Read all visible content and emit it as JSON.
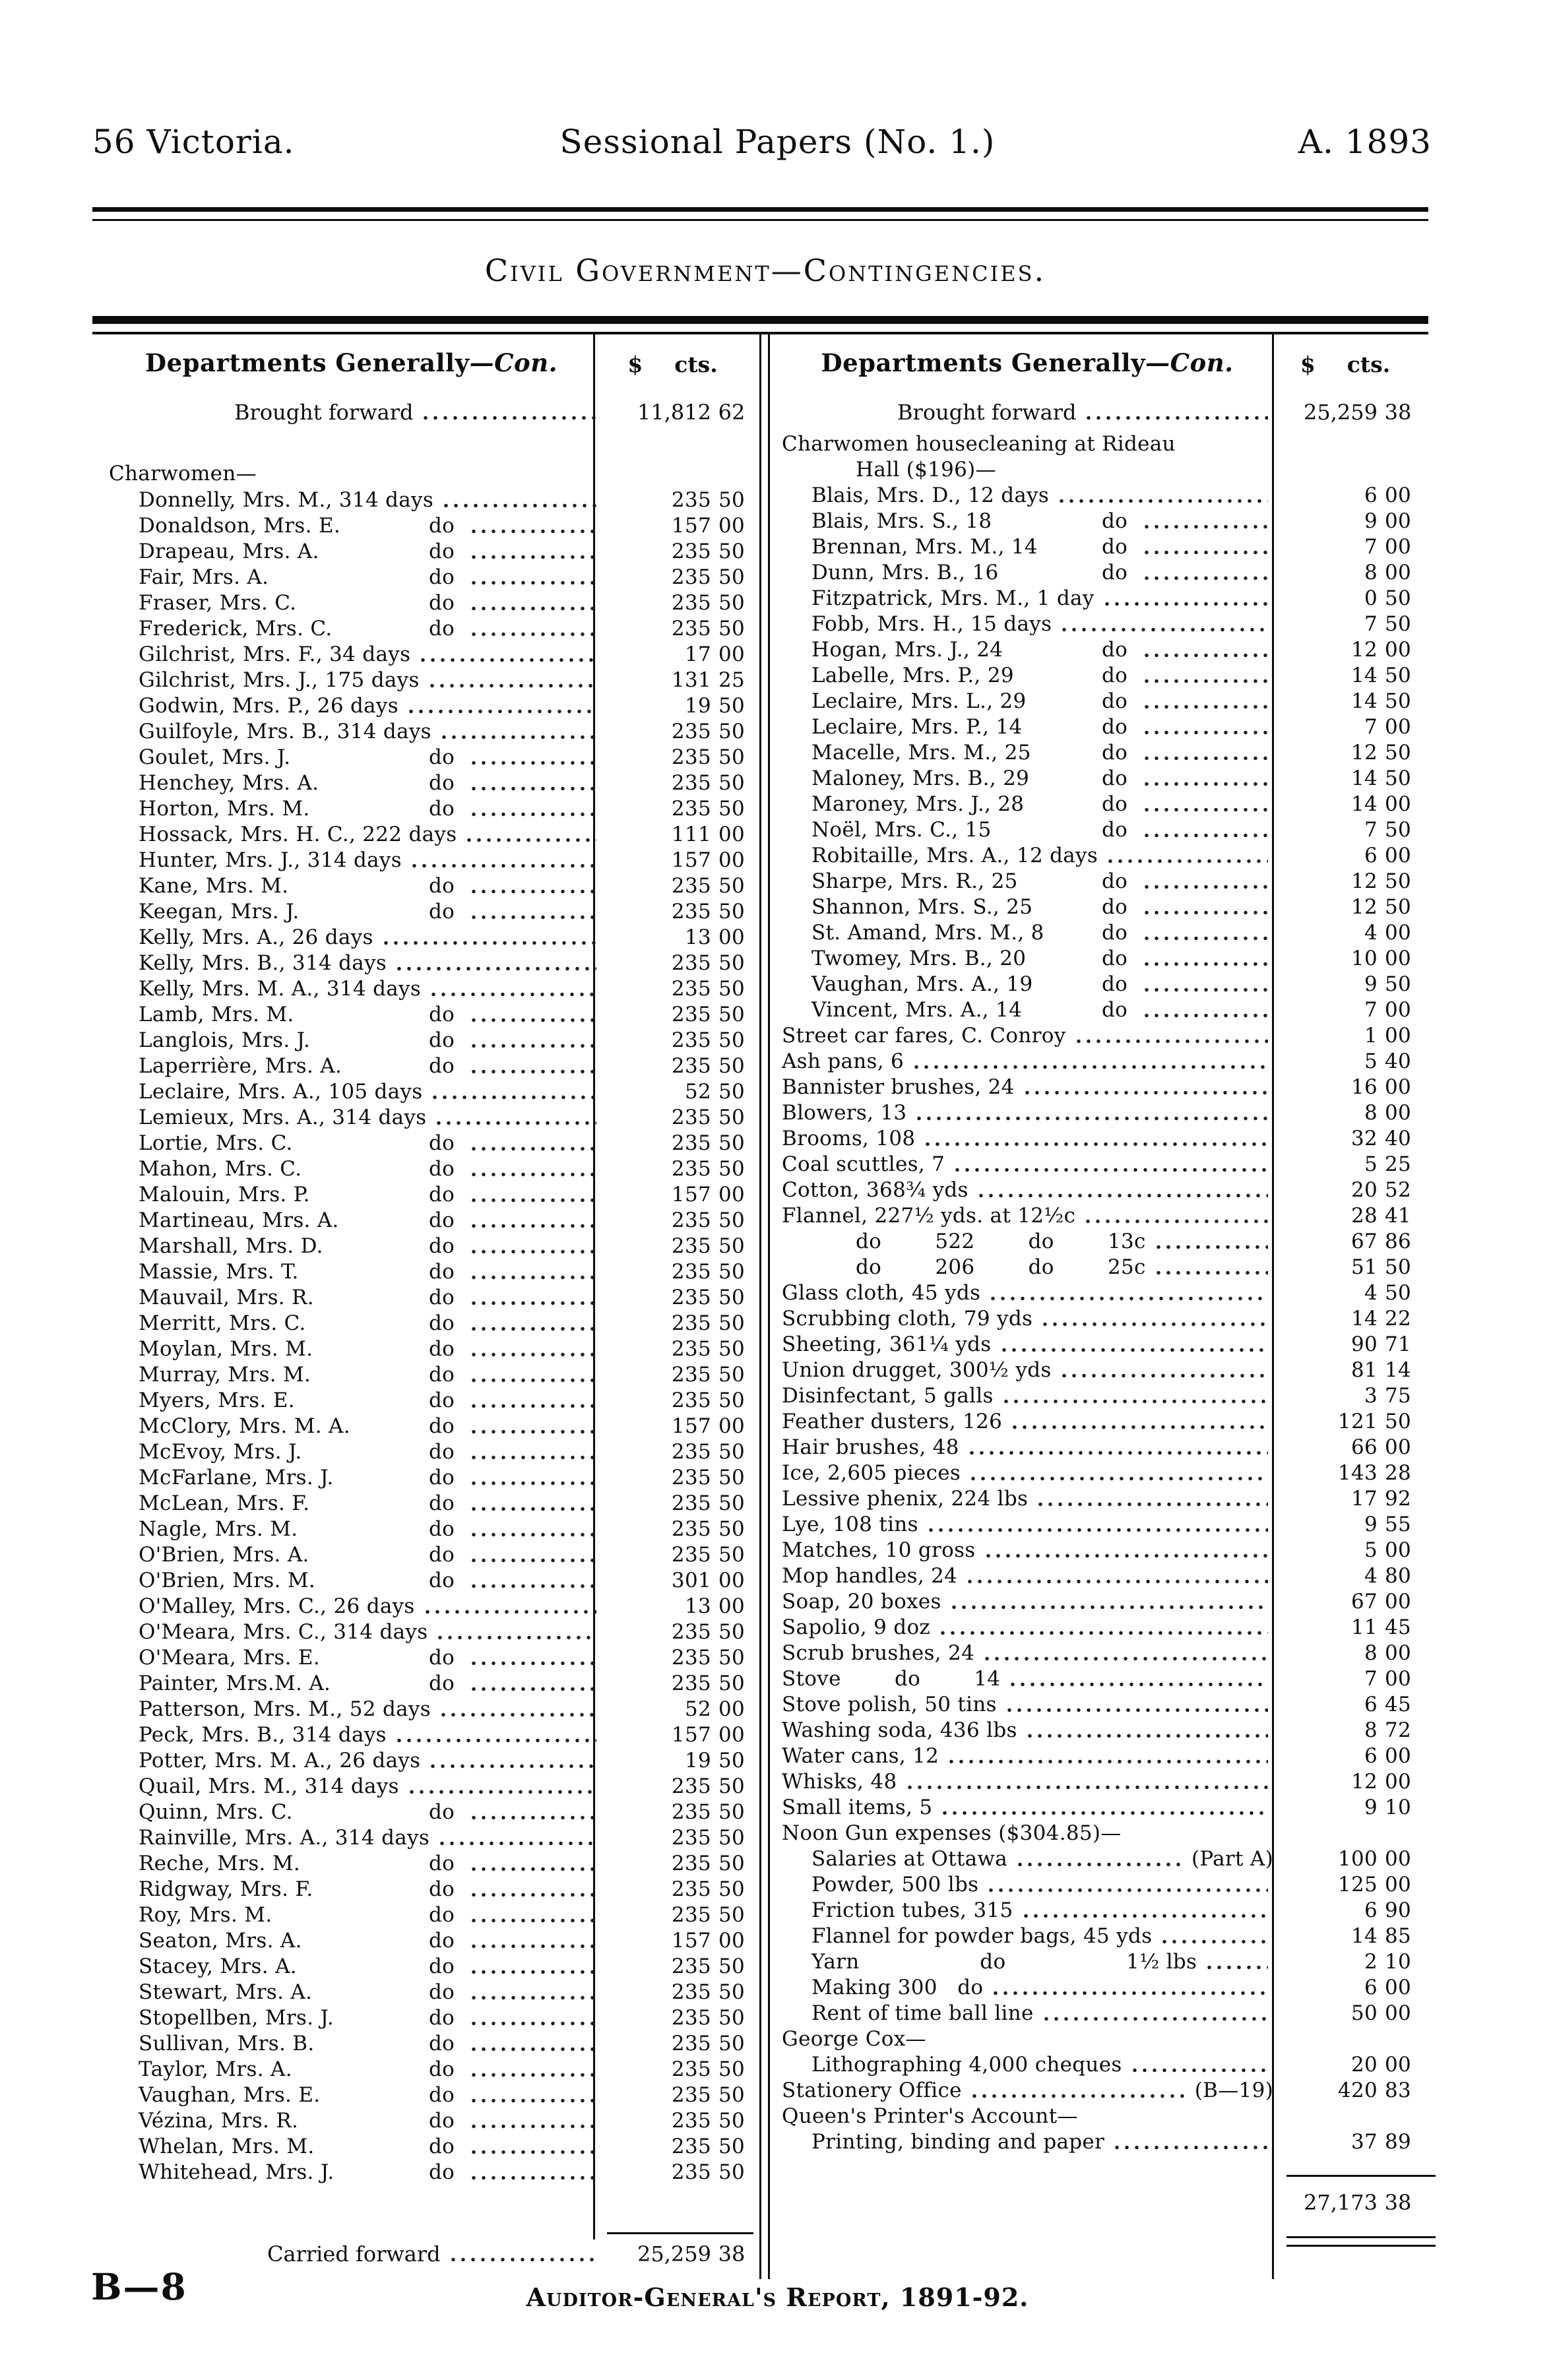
{
  "page_header": {
    "left": "56 Victoria.",
    "center": "Sessional Papers (No. 1.)",
    "right": "A. 1893"
  },
  "doc_title": "Civil Government—Contingencies.",
  "left_column": {
    "heading": "Departments Generally",
    "heading_con": "—Con.",
    "dollar_sign": "$",
    "cents_label": "cts.",
    "brought_forward": {
      "label": "Brought forward",
      "dol": "11,812",
      "cts": "62"
    },
    "section": "Charwomen—",
    "rows": [
      {
        "name": "Donnelly, Mrs. M., 314 days",
        "dol": "235",
        "cts": "50"
      },
      {
        "name": "Donaldson, Mrs. E.",
        "mid": "do",
        "dol": "157",
        "cts": "00"
      },
      {
        "name": "Drapeau, Mrs. A.",
        "mid": "do",
        "dol": "235",
        "cts": "50"
      },
      {
        "name": "Fair, Mrs. A.",
        "mid": "do",
        "dol": "235",
        "cts": "50"
      },
      {
        "name": "Fraser, Mrs. C.",
        "mid": "do",
        "dol": "235",
        "cts": "50"
      },
      {
        "name": "Frederick, Mrs. C.",
        "mid": "do",
        "dol": "235",
        "cts": "50"
      },
      {
        "name": "Gilchrist, Mrs. F., 34 days",
        "dol": "17",
        "cts": "00"
      },
      {
        "name": "Gilchrist, Mrs. J., 175 days",
        "dol": "131",
        "cts": "25"
      },
      {
        "name": "Godwin, Mrs. P., 26 days",
        "dol": "19",
        "cts": "50"
      },
      {
        "name": "Guilfoyle, Mrs. B., 314 days",
        "dol": "235",
        "cts": "50"
      },
      {
        "name": "Goulet, Mrs. J.",
        "mid": "do",
        "dol": "235",
        "cts": "50"
      },
      {
        "name": "Henchey, Mrs. A.",
        "mid": "do",
        "dol": "235",
        "cts": "50"
      },
      {
        "name": "Horton, Mrs. M.",
        "mid": "do",
        "dol": "235",
        "cts": "50"
      },
      {
        "name": "Hossack, Mrs. H. C., 222 days",
        "dol": "111",
        "cts": "00"
      },
      {
        "name": "Hunter, Mrs. J., 314 days",
        "dol": "157",
        "cts": "00"
      },
      {
        "name": "Kane, Mrs. M.",
        "mid": "do",
        "dol": "235",
        "cts": "50"
      },
      {
        "name": "Keegan, Mrs. J.",
        "mid": "do",
        "dol": "235",
        "cts": "50"
      },
      {
        "name": "Kelly, Mrs. A., 26 days",
        "dol": "13",
        "cts": "00"
      },
      {
        "name": "Kelly, Mrs. B., 314 days",
        "dol": "235",
        "cts": "50"
      },
      {
        "name": "Kelly, Mrs. M. A., 314 days",
        "dol": "235",
        "cts": "50"
      },
      {
        "name": "Lamb, Mrs. M.",
        "mid": "do",
        "dol": "235",
        "cts": "50"
      },
      {
        "name": "Langlois, Mrs. J.",
        "mid": "do",
        "dol": "235",
        "cts": "50"
      },
      {
        "name": "Laperrière, Mrs. A.",
        "mid": "do",
        "dol": "235",
        "cts": "50"
      },
      {
        "name": "Leclaire, Mrs. A., 105 days",
        "dol": "52",
        "cts": "50"
      },
      {
        "name": "Lemieux, Mrs. A., 314 days",
        "dol": "235",
        "cts": "50"
      },
      {
        "name": "Lortie, Mrs. C.",
        "mid": "do",
        "dol": "235",
        "cts": "50"
      },
      {
        "name": "Mahon, Mrs. C.",
        "mid": "do",
        "dol": "235",
        "cts": "50"
      },
      {
        "name": "Malouin, Mrs. P.",
        "mid": "do",
        "dol": "157",
        "cts": "00"
      },
      {
        "name": "Martineau, Mrs. A.",
        "mid": "do",
        "dol": "235",
        "cts": "50"
      },
      {
        "name": "Marshall, Mrs. D.",
        "mid": "do",
        "dol": "235",
        "cts": "50"
      },
      {
        "name": "Massie, Mrs. T.",
        "mid": "do",
        "dol": "235",
        "cts": "50"
      },
      {
        "name": "Mauvail, Mrs. R.",
        "mid": "do",
        "dol": "235",
        "cts": "50"
      },
      {
        "name": "Merritt, Mrs. C.",
        "mid": "do",
        "dol": "235",
        "cts": "50"
      },
      {
        "name": "Moylan, Mrs. M.",
        "mid": "do",
        "dol": "235",
        "cts": "50"
      },
      {
        "name": "Murray, Mrs. M.",
        "mid": "do",
        "dol": "235",
        "cts": "50"
      },
      {
        "name": "Myers, Mrs. E.",
        "mid": "do",
        "dol": "235",
        "cts": "50"
      },
      {
        "name": "McClory, Mrs. M. A.",
        "mid": "do",
        "dol": "157",
        "cts": "00"
      },
      {
        "name": "McEvoy, Mrs. J.",
        "mid": "do",
        "dol": "235",
        "cts": "50"
      },
      {
        "name": "McFarlane, Mrs. J.",
        "mid": "do",
        "dol": "235",
        "cts": "50"
      },
      {
        "name": "McLean, Mrs. F.",
        "mid": "do",
        "dol": "235",
        "cts": "50"
      },
      {
        "name": "Nagle, Mrs. M.",
        "mid": "do",
        "dol": "235",
        "cts": "50"
      },
      {
        "name": "O'Brien, Mrs. A.",
        "mid": "do",
        "dol": "235",
        "cts": "50"
      },
      {
        "name": "O'Brien, Mrs. M.",
        "mid": "do",
        "dol": "301",
        "cts": "00"
      },
      {
        "name": "O'Malley, Mrs. C., 26 days",
        "dol": "13",
        "cts": "00"
      },
      {
        "name": "O'Meara, Mrs. C., 314 days",
        "dol": "235",
        "cts": "50"
      },
      {
        "name": "O'Meara, Mrs. E.",
        "mid": "do",
        "dol": "235",
        "cts": "50"
      },
      {
        "name": "Painter, Mrs.M. A.",
        "mid": "do",
        "dol": "235",
        "cts": "50"
      },
      {
        "name": "Patterson, Mrs. M., 52 days",
        "dol": "52",
        "cts": "00"
      },
      {
        "name": "Peck, Mrs. B., 314 days",
        "dol": "157",
        "cts": "00"
      },
      {
        "name": "Potter, Mrs. M. A., 26 days",
        "dol": "19",
        "cts": "50"
      },
      {
        "name": "Quail, Mrs. M., 314 days",
        "dol": "235",
        "cts": "50"
      },
      {
        "name": "Quinn, Mrs. C.",
        "mid": "do",
        "dol": "235",
        "cts": "50"
      },
      {
        "name": "Rainville, Mrs. A., 314 days",
        "dol": "235",
        "cts": "50"
      },
      {
        "name": "Reche, Mrs. M.",
        "mid": "do",
        "dol": "235",
        "cts": "50"
      },
      {
        "name": "Ridgway, Mrs. F.",
        "mid": "do",
        "dol": "235",
        "cts": "50"
      },
      {
        "name": "Roy, Mrs. M.",
        "mid": "do",
        "dol": "235",
        "cts": "50"
      },
      {
        "name": "Seaton, Mrs. A.",
        "mid": "do",
        "dol": "157",
        "cts": "00"
      },
      {
        "name": "Stacey, Mrs. A.",
        "mid": "do",
        "dol": "235",
        "cts": "50"
      },
      {
        "name": "Stewart, Mrs. A.",
        "mid": "do",
        "dol": "235",
        "cts": "50"
      },
      {
        "name": "Stopellben, Mrs. J.",
        "mid": "do",
        "dol": "235",
        "cts": "50"
      },
      {
        "name": "Sullivan, Mrs. B.",
        "mid": "do",
        "dol": "235",
        "cts": "50"
      },
      {
        "name": "Taylor, Mrs. A.",
        "mid": "do",
        "dol": "235",
        "cts": "50"
      },
      {
        "name": "Vaughan, Mrs. E.",
        "mid": "do",
        "dol": "235",
        "cts": "50"
      },
      {
        "name": "Vézina, Mrs. R.",
        "mid": "do",
        "dol": "235",
        "cts": "50"
      },
      {
        "name": "Whelan, Mrs. M.",
        "mid": "do",
        "dol": "235",
        "cts": "50"
      },
      {
        "name": "Whitehead, Mrs. J.",
        "mid": "do",
        "dol": "235",
        "cts": "50"
      }
    ],
    "carried_forward": {
      "label": "Carried forward",
      "dol": "25,259",
      "cts": "38"
    }
  },
  "right_column": {
    "heading": "Departments Generally",
    "heading_con": "—Con.",
    "dollar_sign": "$",
    "cents_label": "cts.",
    "brought_forward": {
      "label": "Brought forward",
      "dol": "25,259",
      "cts": "38"
    },
    "items": [
      {
        "type": "sec",
        "ind": 0,
        "name": "Charwomen housecleaning at Rideau"
      },
      {
        "type": "sec",
        "ind": 2,
        "name": "Hall ($196)—"
      },
      {
        "ind": 1,
        "name": "Blais, Mrs. D., 12 days",
        "dol": "6",
        "cts": "00"
      },
      {
        "ind": 1,
        "name": "Blais, Mrs. S., 18",
        "mid": "do",
        "dol": "9",
        "cts": "00"
      },
      {
        "ind": 1,
        "name": "Brennan, Mrs. M., 14",
        "mid": "do",
        "dol": "7",
        "cts": "00"
      },
      {
        "ind": 1,
        "name": "Dunn, Mrs. B., 16",
        "mid": "do",
        "dol": "8",
        "cts": "00"
      },
      {
        "ind": 1,
        "name": "Fitzpatrick, Mrs. M., 1 day",
        "dol": "0",
        "cts": "50"
      },
      {
        "ind": 1,
        "name": "Fobb, Mrs. H., 15 days",
        "dol": "7",
        "cts": "50"
      },
      {
        "ind": 1,
        "name": "Hogan, Mrs. J., 24",
        "mid": "do",
        "dol": "12",
        "cts": "00"
      },
      {
        "ind": 1,
        "name": "Labelle, Mrs. P., 29",
        "mid": "do",
        "dol": "14",
        "cts": "50"
      },
      {
        "ind": 1,
        "name": "Leclaire, Mrs. L., 29",
        "mid": "do",
        "dol": "14",
        "cts": "50"
      },
      {
        "ind": 1,
        "name": "Leclaire, Mrs. P., 14",
        "mid": "do",
        "dol": "7",
        "cts": "00"
      },
      {
        "ind": 1,
        "name": "Macelle, Mrs. M., 25",
        "mid": "do",
        "dol": "12",
        "cts": "50"
      },
      {
        "ind": 1,
        "name": "Maloney, Mrs. B., 29",
        "mid": "do",
        "dol": "14",
        "cts": "50"
      },
      {
        "ind": 1,
        "name": "Maroney, Mrs. J., 28",
        "mid": "do",
        "dol": "14",
        "cts": "00"
      },
      {
        "ind": 1,
        "name": "Noël, Mrs. C., 15",
        "mid": "do",
        "dol": "7",
        "cts": "50"
      },
      {
        "ind": 1,
        "name": "Robitaille, Mrs. A., 12 days",
        "dol": "6",
        "cts": "00"
      },
      {
        "ind": 1,
        "name": "Sharpe, Mrs. R., 25",
        "mid": "do",
        "dol": "12",
        "cts": "50"
      },
      {
        "ind": 1,
        "name": "Shannon, Mrs. S., 25",
        "mid": "do",
        "dol": "12",
        "cts": "50"
      },
      {
        "ind": 1,
        "name": "St. Amand, Mrs. M., 8",
        "mid": "do",
        "dol": "4",
        "cts": "00"
      },
      {
        "ind": 1,
        "name": "Twomey, Mrs. B., 20",
        "mid": "do",
        "dol": "10",
        "cts": "00"
      },
      {
        "ind": 1,
        "name": "Vaughan, Mrs. A., 19",
        "mid": "do",
        "dol": "9",
        "cts": "50"
      },
      {
        "ind": 1,
        "name": "Vincent, Mrs. A., 14",
        "mid": "do",
        "dol": "7",
        "cts": "00"
      },
      {
        "ind": 0,
        "name": "Street car fares, C. Conroy",
        "dol": "1",
        "cts": "00"
      },
      {
        "ind": 0,
        "name": "Ash pans, 6",
        "dol": "5",
        "cts": "40"
      },
      {
        "ind": 0,
        "name": "Bannister brushes, 24",
        "dol": "16",
        "cts": "00"
      },
      {
        "ind": 0,
        "name": "Blowers, 13",
        "dol": "8",
        "cts": "00"
      },
      {
        "ind": 0,
        "name": "Brooms, 108",
        "dol": "32",
        "cts": "40"
      },
      {
        "ind": 0,
        "name": "Coal scuttles, 7",
        "dol": "5",
        "cts": "25"
      },
      {
        "ind": 0,
        "name": "Cotton, 368¾ yds",
        "dol": "20",
        "cts": "52"
      },
      {
        "ind": 0,
        "name": "Flannel, 227½ yds. at 12½c",
        "dol": "28",
        "cts": "41"
      },
      {
        "ind": 2,
        "name": "do        522        do        13c",
        "dol": "67",
        "cts": "86"
      },
      {
        "ind": 2,
        "name": "do        206        do        25c",
        "dol": "51",
        "cts": "50"
      },
      {
        "ind": 0,
        "name": "Glass cloth, 45 yds",
        "dol": "4",
        "cts": "50"
      },
      {
        "ind": 0,
        "name": "Scrubbing cloth, 79 yds",
        "dol": "14",
        "cts": "22"
      },
      {
        "ind": 0,
        "name": "Sheeting, 361¼ yds",
        "dol": "90",
        "cts": "71"
      },
      {
        "ind": 0,
        "name": "Union drugget, 300½ yds",
        "dol": "81",
        "cts": "14"
      },
      {
        "ind": 0,
        "name": "Disinfectant, 5 galls",
        "dol": "3",
        "cts": "75"
      },
      {
        "ind": 0,
        "name": "Feather dusters, 126",
        "dol": "121",
        "cts": "50"
      },
      {
        "ind": 0,
        "name": "Hair brushes, 48",
        "dol": "66",
        "cts": "00"
      },
      {
        "ind": 0,
        "name": "Ice, 2,605 pieces",
        "dol": "143",
        "cts": "28"
      },
      {
        "ind": 0,
        "name": "Lessive phenix, 224 lbs",
        "dol": "17",
        "cts": "92"
      },
      {
        "ind": 0,
        "name": "Lye, 108 tins",
        "dol": "9",
        "cts": "55"
      },
      {
        "ind": 0,
        "name": "Matches, 10 gross",
        "dol": "5",
        "cts": "00"
      },
      {
        "ind": 0,
        "name": "Mop handles, 24",
        "dol": "4",
        "cts": "80"
      },
      {
        "ind": 0,
        "name": "Soap, 20 boxes",
        "dol": "67",
        "cts": "00"
      },
      {
        "ind": 0,
        "name": "Sapolio, 9 doz",
        "dol": "11",
        "cts": "45"
      },
      {
        "ind": 0,
        "name": "Scrub brushes, 24",
        "dol": "8",
        "cts": "00"
      },
      {
        "ind": 0,
        "name": "Stove        do        14",
        "dol": "7",
        "cts": "00"
      },
      {
        "ind": 0,
        "name": "Stove polish, 50 tins",
        "dol": "6",
        "cts": "45"
      },
      {
        "ind": 0,
        "name": "Washing soda, 436 lbs",
        "dol": "8",
        "cts": "72"
      },
      {
        "ind": 0,
        "name": "Water cans, 12",
        "dol": "6",
        "cts": "00"
      },
      {
        "ind": 0,
        "name": "Whisks, 48",
        "dol": "12",
        "cts": "00"
      },
      {
        "ind": 0,
        "name": "Small items, 5",
        "dol": "9",
        "cts": "10"
      },
      {
        "type": "sec",
        "ind": 0,
        "name": "Noon Gun expenses ($304.85)—"
      },
      {
        "ind": 1,
        "name": "Salaries at Ottawa",
        "suf": "(Part A)",
        "dol": "100",
        "cts": "00"
      },
      {
        "ind": 1,
        "name": "Powder, 500 lbs",
        "dol": "125",
        "cts": "00"
      },
      {
        "ind": 1,
        "name": "Friction tubes, 315",
        "dol": "6",
        "cts": "90"
      },
      {
        "ind": 1,
        "name": "Flannel for powder bags, 45 yds",
        "dol": "14",
        "cts": "85"
      },
      {
        "ind": 1,
        "name": "Yarn                  do                  1½ lbs",
        "dol": "2",
        "cts": "10"
      },
      {
        "ind": 1,
        "name": "Making 300   do",
        "dol": "6",
        "cts": "00"
      },
      {
        "ind": 1,
        "name": "Rent of time ball line",
        "dol": "50",
        "cts": "00"
      },
      {
        "type": "sec",
        "ind": 0,
        "name": "George Cox—"
      },
      {
        "ind": 1,
        "name": "Lithographing 4,000 cheques",
        "dol": "20",
        "cts": "00"
      },
      {
        "ind": 0,
        "name": "Stationery Office",
        "suf": "(B—19)",
        "dol": "420",
        "cts": "83"
      },
      {
        "type": "sec",
        "ind": 0,
        "name": "Queen's Printer's Account—"
      },
      {
        "ind": 1,
        "name": "Printing, binding and paper",
        "dol": "37",
        "cts": "89"
      }
    ],
    "total": {
      "dol": "27,173",
      "cts": "38"
    }
  },
  "footer": {
    "left": "B—8",
    "center": "Auditor-General's Report, 1891-92."
  }
}
